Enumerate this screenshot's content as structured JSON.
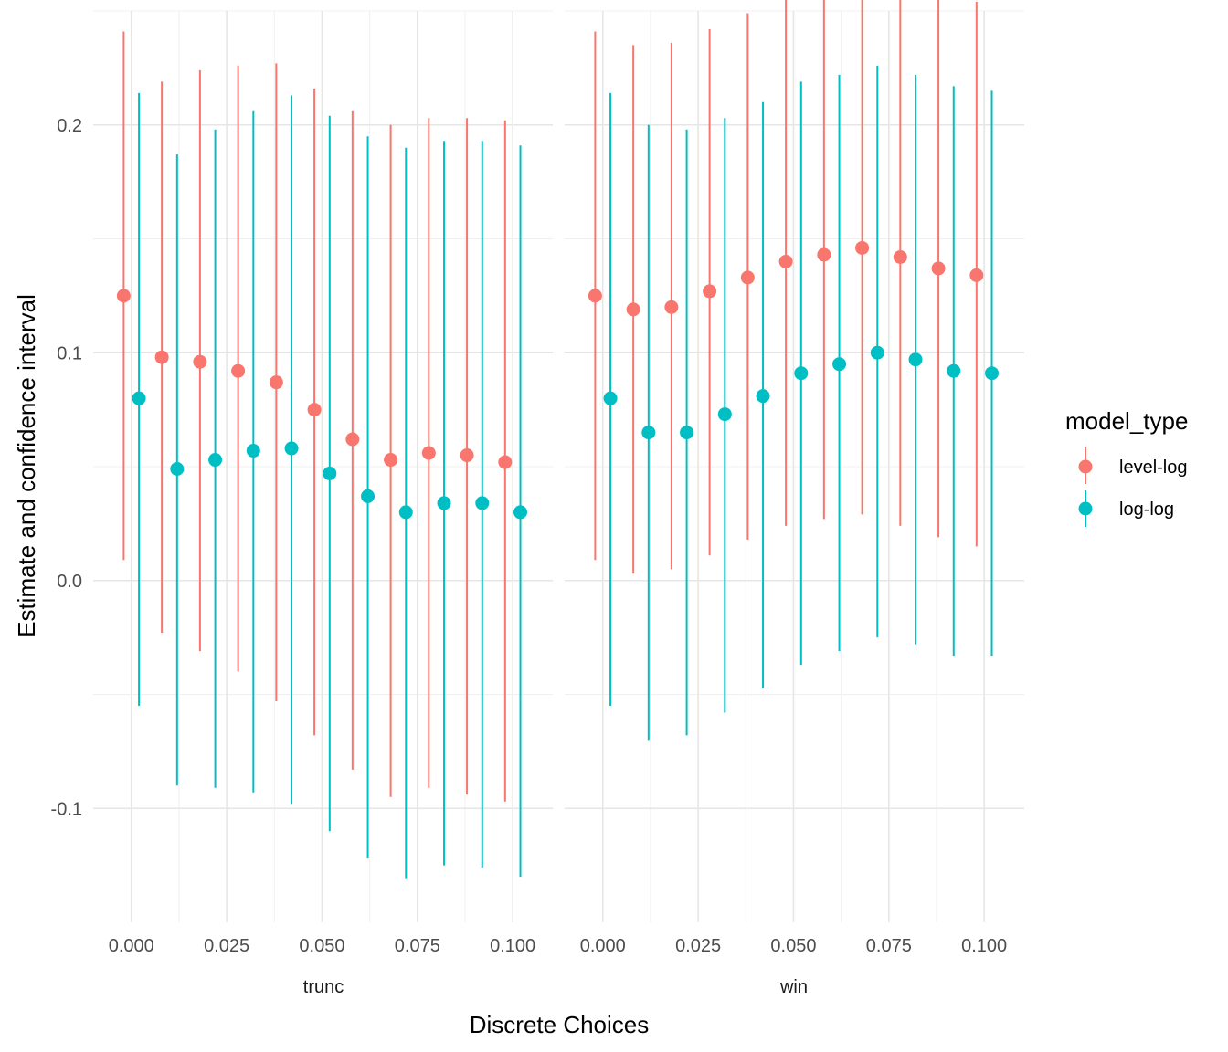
{
  "chart_data": {
    "type": "scatter",
    "subtype": "pointrange-faceted",
    "xlabel": "Discrete Choices",
    "ylabel": "Estimate and confidence interval",
    "x_ticks": [
      0.0,
      0.025,
      0.05,
      0.075,
      0.1
    ],
    "x_tick_labels": [
      "0.000",
      "0.025",
      "0.050",
      "0.075",
      "0.100"
    ],
    "y_ticks": [
      -0.1,
      0.0,
      0.1,
      0.2
    ],
    "y_tick_labels": [
      "-0.1",
      "0.0",
      "0.1",
      "0.2"
    ],
    "xlim": [
      -0.01,
      0.1105
    ],
    "ylim": [
      -0.15,
      0.25
    ],
    "grid": true,
    "legend": {
      "title": "model_type",
      "position": "right",
      "entries": [
        {
          "name": "level-log",
          "color": "#F8766D"
        },
        {
          "name": "log-log",
          "color": "#00BFC4"
        }
      ]
    },
    "dodge": 0.004,
    "facets": [
      {
        "label": "trunc",
        "x": [
          0.0,
          0.01,
          0.02,
          0.03,
          0.04,
          0.05,
          0.06,
          0.07,
          0.08,
          0.09,
          0.1
        ],
        "series": [
          {
            "name": "level-log",
            "estimate": [
              0.125,
              0.098,
              0.096,
              0.092,
              0.087,
              0.075,
              0.062,
              0.053,
              0.056,
              0.055,
              0.052
            ],
            "lower": [
              0.009,
              -0.023,
              -0.031,
              -0.04,
              -0.053,
              -0.068,
              -0.083,
              -0.095,
              -0.091,
              -0.094,
              -0.097
            ],
            "upper": [
              0.241,
              0.219,
              0.224,
              0.226,
              0.227,
              0.216,
              0.206,
              0.2,
              0.203,
              0.203,
              0.202
            ]
          },
          {
            "name": "log-log",
            "estimate": [
              0.08,
              0.049,
              0.053,
              0.057,
              0.058,
              0.047,
              0.037,
              0.03,
              0.034,
              0.034,
              0.03
            ],
            "lower": [
              -0.055,
              -0.09,
              -0.091,
              -0.093,
              -0.098,
              -0.11,
              -0.122,
              -0.131,
              -0.125,
              -0.126,
              -0.13
            ],
            "upper": [
              0.214,
              0.187,
              0.198,
              0.206,
              0.213,
              0.204,
              0.195,
              0.19,
              0.193,
              0.193,
              0.191
            ]
          }
        ]
      },
      {
        "label": "win",
        "x": [
          0.0,
          0.01,
          0.02,
          0.03,
          0.04,
          0.05,
          0.06,
          0.07,
          0.08,
          0.09,
          0.1
        ],
        "series": [
          {
            "name": "level-log",
            "estimate": [
              0.125,
              0.119,
              0.12,
              0.127,
              0.133,
              0.14,
              0.143,
              0.146,
              0.142,
              0.137,
              0.134
            ],
            "lower": [
              0.009,
              0.003,
              0.005,
              0.011,
              0.018,
              0.024,
              0.027,
              0.029,
              0.024,
              0.019,
              0.015
            ],
            "upper": [
              0.241,
              0.235,
              0.236,
              0.242,
              0.249,
              0.256,
              0.26,
              0.264,
              0.26,
              0.256,
              0.254
            ]
          },
          {
            "name": "log-log",
            "estimate": [
              0.08,
              0.065,
              0.065,
              0.073,
              0.081,
              0.091,
              0.095,
              0.1,
              0.097,
              0.092,
              0.091
            ],
            "lower": [
              -0.055,
              -0.07,
              -0.068,
              -0.058,
              -0.047,
              -0.037,
              -0.031,
              -0.025,
              -0.028,
              -0.033,
              -0.033
            ],
            "upper": [
              0.214,
              0.2,
              0.198,
              0.203,
              0.21,
              0.219,
              0.222,
              0.226,
              0.222,
              0.217,
              0.215
            ]
          }
        ]
      }
    ]
  }
}
